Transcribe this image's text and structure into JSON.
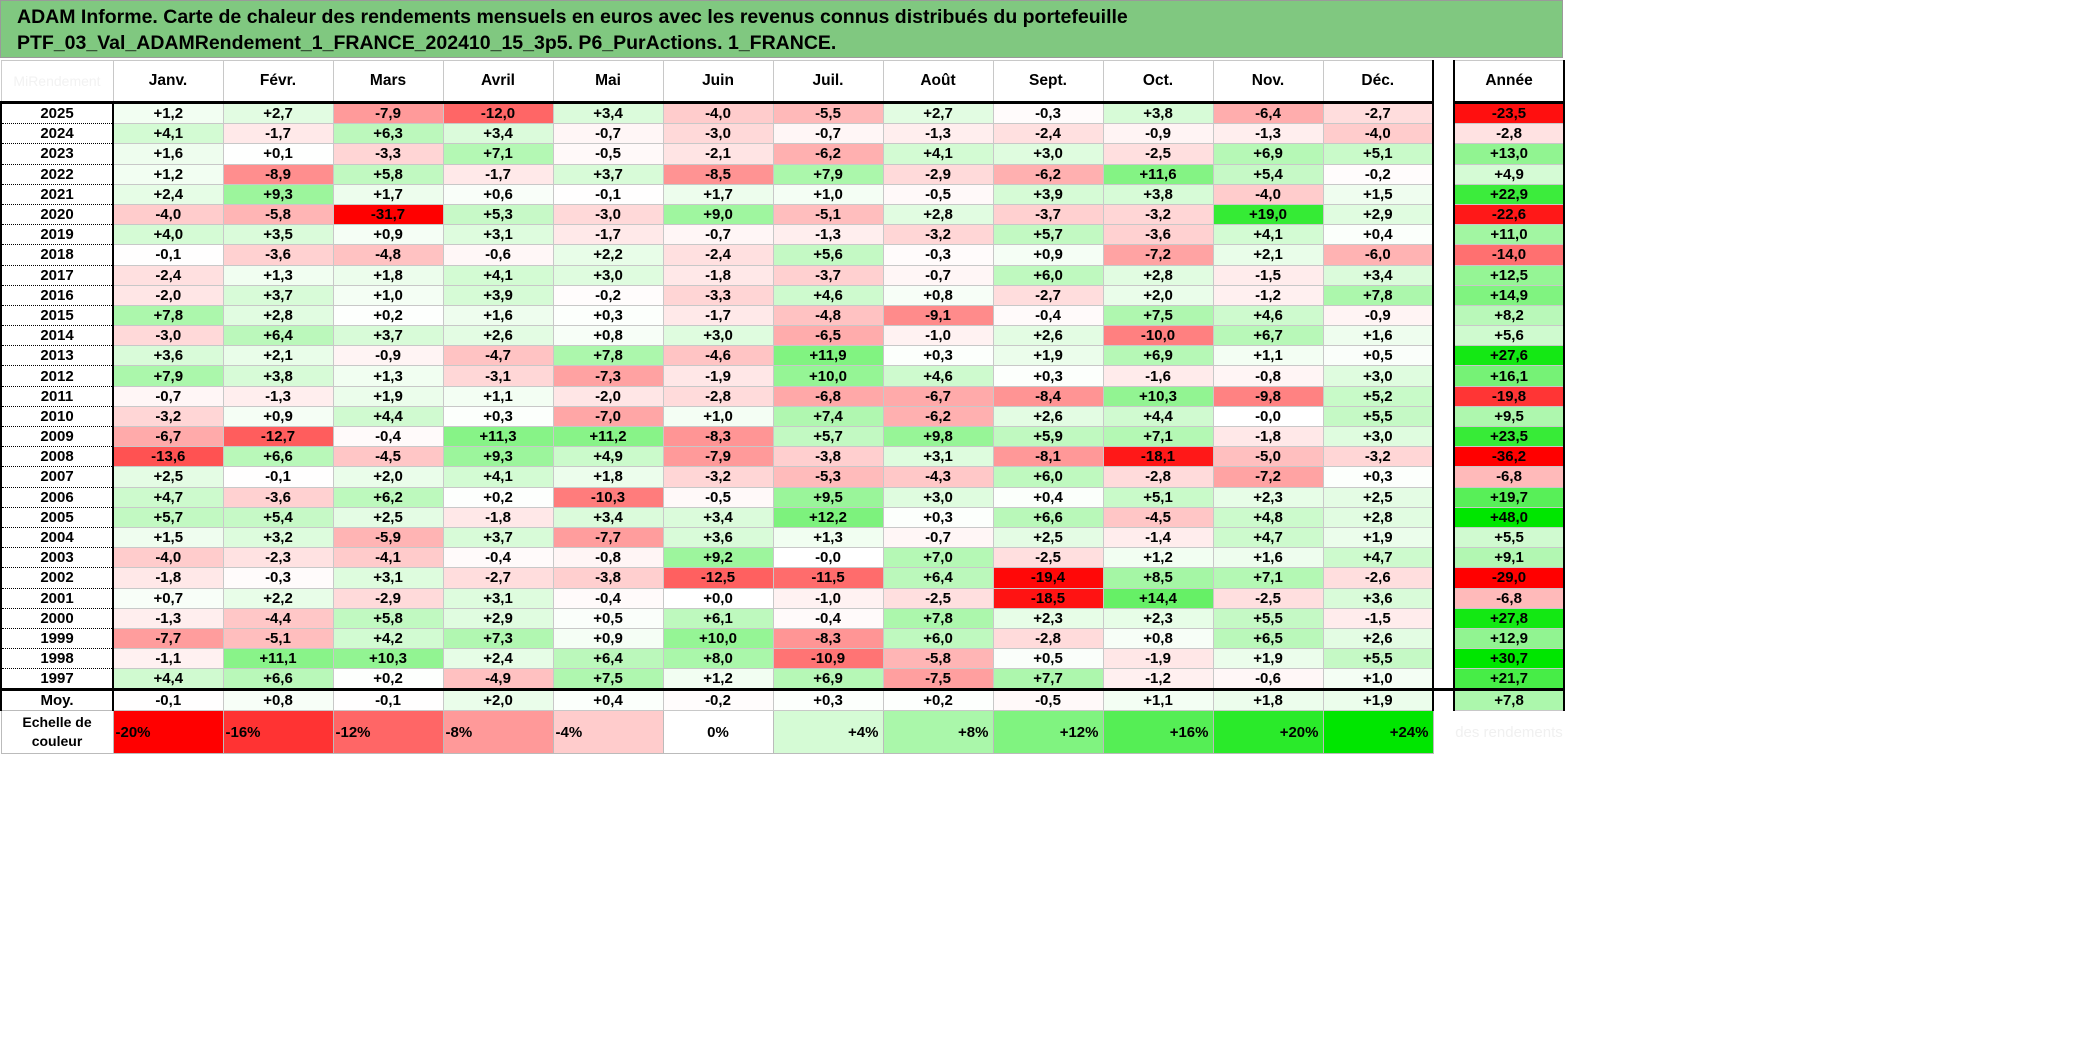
{
  "title": {
    "line1": "ADAM Informe. Carte de chaleur des rendements mensuels en euros avec les revenus connus distribués du portefeuille",
    "line2": "PTF_03_Val_ADAMRendement_1_FRANCE_202410_15_3p5. P6_PurActions. 1_FRANCE."
  },
  "corner_label": "MiRendement",
  "chart_data": {
    "type": "heatmap",
    "title": "Carte de chaleur des rendements mensuels",
    "columns": [
      "Janv.",
      "Févr.",
      "Mars",
      "Avril",
      "Mai",
      "Juin",
      "Juil.",
      "Août",
      "Sept.",
      "Oct.",
      "Nov.",
      "Déc."
    ],
    "total_header": "Année",
    "rows": [
      {
        "year": "2025",
        "values": [
          "+1,2",
          "+2,7",
          "-7,9",
          "-12,0",
          "+3,4",
          "-4,0",
          "-5,5",
          "+2,7",
          "-0,3",
          "+3,8",
          "-6,4",
          "-2,7"
        ],
        "total": "-23,5"
      },
      {
        "year": "2024",
        "values": [
          "+4,1",
          "-1,7",
          "+6,3",
          "+3,4",
          "-0,7",
          "-3,0",
          "-0,7",
          "-1,3",
          "-2,4",
          "-0,9",
          "-1,3",
          "-4,0"
        ],
        "total": "-2,8"
      },
      {
        "year": "2023",
        "values": [
          "+1,6",
          "+0,1",
          "-3,3",
          "+7,1",
          "-0,5",
          "-2,1",
          "-6,2",
          "+4,1",
          "+3,0",
          "-2,5",
          "+6,9",
          "+5,1"
        ],
        "total": "+13,0"
      },
      {
        "year": "2022",
        "values": [
          "+1,2",
          "-8,9",
          "+5,8",
          "-1,7",
          "+3,7",
          "-8,5",
          "+7,9",
          "-2,9",
          "-6,2",
          "+11,6",
          "+5,4",
          "-0,2"
        ],
        "total": "+4,9"
      },
      {
        "year": "2021",
        "values": [
          "+2,4",
          "+9,3",
          "+1,7",
          "+0,6",
          "-0,1",
          "+1,7",
          "+1,0",
          "-0,5",
          "+3,9",
          "+3,8",
          "-4,0",
          "+1,5"
        ],
        "total": "+22,9"
      },
      {
        "year": "2020",
        "values": [
          "-4,0",
          "-5,8",
          "-31,7",
          "+5,3",
          "-3,0",
          "+9,0",
          "-5,1",
          "+2,8",
          "-3,7",
          "-3,2",
          "+19,0",
          "+2,9"
        ],
        "total": "-22,6"
      },
      {
        "year": "2019",
        "values": [
          "+4,0",
          "+3,5",
          "+0,9",
          "+3,1",
          "-1,7",
          "-0,7",
          "-1,3",
          "-3,2",
          "+5,7",
          "-3,6",
          "+4,1",
          "+0,4"
        ],
        "total": "+11,0"
      },
      {
        "year": "2018",
        "values": [
          "-0,1",
          "-3,6",
          "-4,8",
          "-0,6",
          "+2,2",
          "-2,4",
          "+5,6",
          "-0,3",
          "+0,9",
          "-7,2",
          "+2,1",
          "-6,0"
        ],
        "total": "-14,0"
      },
      {
        "year": "2017",
        "values": [
          "-2,4",
          "+1,3",
          "+1,8",
          "+4,1",
          "+3,0",
          "-1,8",
          "-3,7",
          "-0,7",
          "+6,0",
          "+2,8",
          "-1,5",
          "+3,4"
        ],
        "total": "+12,5"
      },
      {
        "year": "2016",
        "values": [
          "-2,0",
          "+3,7",
          "+1,0",
          "+3,9",
          "-0,2",
          "-3,3",
          "+4,6",
          "+0,8",
          "-2,7",
          "+2,0",
          "-1,2",
          "+7,8"
        ],
        "total": "+14,9"
      },
      {
        "year": "2015",
        "values": [
          "+7,8",
          "+2,8",
          "+0,2",
          "+1,6",
          "+0,3",
          "-1,7",
          "-4,8",
          "-9,1",
          "-0,4",
          "+7,5",
          "+4,6",
          "-0,9"
        ],
        "total": "+8,2"
      },
      {
        "year": "2014",
        "values": [
          "-3,0",
          "+6,4",
          "+3,7",
          "+2,6",
          "+0,8",
          "+3,0",
          "-6,5",
          "-1,0",
          "+2,6",
          "-10,0",
          "+6,7",
          "+1,6"
        ],
        "total": "+5,6"
      },
      {
        "year": "2013",
        "values": [
          "+3,6",
          "+2,1",
          "-0,9",
          "-4,7",
          "+7,8",
          "-4,6",
          "+11,9",
          "+0,3",
          "+1,9",
          "+6,9",
          "+1,1",
          "+0,5"
        ],
        "total": "+27,6"
      },
      {
        "year": "2012",
        "values": [
          "+7,9",
          "+3,8",
          "+1,3",
          "-3,1",
          "-7,3",
          "-1,9",
          "+10,0",
          "+4,6",
          "+0,3",
          "-1,6",
          "-0,8",
          "+3,0"
        ],
        "total": "+16,1"
      },
      {
        "year": "2011",
        "values": [
          "-0,7",
          "-1,3",
          "+1,9",
          "+1,1",
          "-2,0",
          "-2,8",
          "-6,8",
          "-6,7",
          "-8,4",
          "+10,3",
          "-9,8",
          "+5,2"
        ],
        "total": "-19,8"
      },
      {
        "year": "2010",
        "values": [
          "-3,2",
          "+0,9",
          "+4,4",
          "+0,3",
          "-7,0",
          "+1,0",
          "+7,4",
          "-6,2",
          "+2,6",
          "+4,4",
          "-0,0",
          "+5,5"
        ],
        "total": "+9,5"
      },
      {
        "year": "2009",
        "values": [
          "-6,7",
          "-12,7",
          "-0,4",
          "+11,3",
          "+11,2",
          "-8,3",
          "+5,7",
          "+9,8",
          "+5,9",
          "+7,1",
          "-1,8",
          "+3,0"
        ],
        "total": "+23,5"
      },
      {
        "year": "2008",
        "values": [
          "-13,6",
          "+6,6",
          "-4,5",
          "+9,3",
          "+4,9",
          "-7,9",
          "-3,8",
          "+3,1",
          "-8,1",
          "-18,1",
          "-5,0",
          "-3,2"
        ],
        "total": "-36,2"
      },
      {
        "year": "2007",
        "values": [
          "+2,5",
          "-0,1",
          "+2,0",
          "+4,1",
          "+1,8",
          "-3,2",
          "-5,3",
          "-4,3",
          "+6,0",
          "-2,8",
          "-7,2",
          "+0,3"
        ],
        "total": "-6,8"
      },
      {
        "year": "2006",
        "values": [
          "+4,7",
          "-3,6",
          "+6,2",
          "+0,2",
          "-10,3",
          "-0,5",
          "+9,5",
          "+3,0",
          "+0,4",
          "+5,1",
          "+2,3",
          "+2,5"
        ],
        "total": "+19,7"
      },
      {
        "year": "2005",
        "values": [
          "+5,7",
          "+5,4",
          "+2,5",
          "-1,8",
          "+3,4",
          "+3,4",
          "+12,2",
          "+0,3",
          "+6,6",
          "-4,5",
          "+4,8",
          "+2,8"
        ],
        "total": "+48,0"
      },
      {
        "year": "2004",
        "values": [
          "+1,5",
          "+3,2",
          "-5,9",
          "+3,7",
          "-7,7",
          "+3,6",
          "+1,3",
          "-0,7",
          "+2,5",
          "-1,4",
          "+4,7",
          "+1,9"
        ],
        "total": "+5,5"
      },
      {
        "year": "2003",
        "values": [
          "-4,0",
          "-2,3",
          "-4,1",
          "-0,4",
          "-0,8",
          "+9,2",
          "-0,0",
          "+7,0",
          "-2,5",
          "+1,2",
          "+1,6",
          "+4,7"
        ],
        "total": "+9,1"
      },
      {
        "year": "2002",
        "values": [
          "-1,8",
          "-0,3",
          "+3,1",
          "-2,7",
          "-3,8",
          "-12,5",
          "-11,5",
          "+6,4",
          "-19,4",
          "+8,5",
          "+7,1",
          "-2,6"
        ],
        "total": "-29,0"
      },
      {
        "year": "2001",
        "values": [
          "+0,7",
          "+2,2",
          "-2,9",
          "+3,1",
          "-0,4",
          "+0,0",
          "-1,0",
          "-2,5",
          "-18,5",
          "+14,4",
          "-2,5",
          "+3,6"
        ],
        "total": "-6,8"
      },
      {
        "year": "2000",
        "values": [
          "-1,3",
          "-4,4",
          "+5,8",
          "+2,9",
          "+0,5",
          "+6,1",
          "-0,4",
          "+7,8",
          "+2,3",
          "+2,3",
          "+5,5",
          "-1,5"
        ],
        "total": "+27,8"
      },
      {
        "year": "1999",
        "values": [
          "-7,7",
          "-5,1",
          "+4,2",
          "+7,3",
          "+0,9",
          "+10,0",
          "-8,3",
          "+6,0",
          "-2,8",
          "+0,8",
          "+6,5",
          "+2,6"
        ],
        "total": "+12,9"
      },
      {
        "year": "1998",
        "values": [
          "-1,1",
          "+11,1",
          "+10,3",
          "+2,4",
          "+6,4",
          "+8,0",
          "-10,9",
          "-5,8",
          "+0,5",
          "-1,9",
          "+1,9",
          "+5,5"
        ],
        "total": "+30,7"
      },
      {
        "year": "1997",
        "values": [
          "+4,4",
          "+6,6",
          "+0,2",
          "-4,9",
          "+7,5",
          "+1,2",
          "+6,9",
          "-7,5",
          "+7,7",
          "-1,2",
          "-0,6",
          "+1,0"
        ],
        "total": "+21,7"
      }
    ],
    "average": {
      "label": "Moy.",
      "values": [
        "-0,1",
        "+0,8",
        "-0,1",
        "+2,0",
        "+0,4",
        "-0,2",
        "+0,3",
        "+0,2",
        "-0,5",
        "+1,1",
        "+1,8",
        "+1,9"
      ],
      "total": "+7,8"
    },
    "color_scale": {
      "label": "Echelle de couleur",
      "steps": [
        "-20%",
        "-16%",
        "-12%",
        "-8%",
        "-4%",
        "0%",
        "+4%",
        "+8%",
        "+12%",
        "+16%",
        "+20%",
        "+24%"
      ],
      "step_values": [
        -20,
        -16,
        -12,
        -8,
        -4,
        0,
        4,
        8,
        12,
        16,
        20,
        24
      ],
      "min_color": "#ff0000",
      "mid_color": "#ffffff",
      "max_color": "#00e600",
      "footer_note": "des rendements"
    }
  }
}
